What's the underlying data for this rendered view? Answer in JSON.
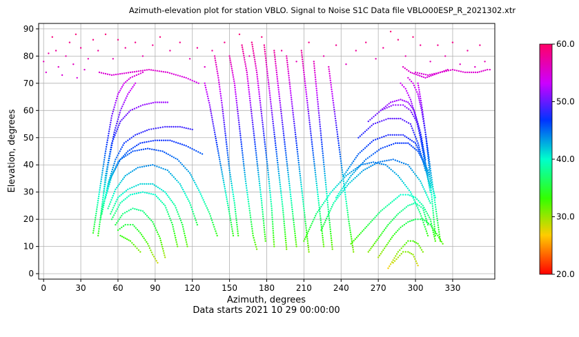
{
  "chart_data": {
    "type": "scatter",
    "title": "Azimuth-elevation plot for station VBLO.    Signal to Noise S1C    Data file VBLO00ESP_R_2021302.xtr",
    "xlabel": "Azimuth, degrees",
    "ylabel": "Elevation, degrees",
    "subtitle": "Data starts 2021 10 29 00:00:00",
    "xlim": [
      -4,
      364
    ],
    "ylim": [
      -2,
      92
    ],
    "xticks": [
      0,
      30,
      60,
      90,
      120,
      150,
      180,
      210,
      240,
      270,
      300,
      330
    ],
    "yticks": [
      0,
      10,
      20,
      30,
      40,
      50,
      60,
      70,
      80,
      90
    ],
    "grid": true,
    "colorbar": {
      "min": 20.0,
      "max": 60.0,
      "ticks": [
        "20.0",
        "30.0",
        "40.0",
        "50.0",
        "60.0"
      ],
      "tick_values": [
        20,
        30,
        40,
        50,
        60
      ],
      "colormap": "gist_rainbow"
    },
    "snr_model": "snr increases with elevation from about 25 at 0 degrees to 60 at 90 degrees",
    "tracks": [
      {
        "az": [
          40,
          45,
          50,
          55,
          60,
          65,
          70,
          75,
          80
        ],
        "el": [
          15,
          30,
          45,
          58,
          66,
          70,
          72,
          73,
          74
        ]
      },
      {
        "az": [
          44,
          48,
          52,
          57,
          62,
          68,
          74
        ],
        "el": [
          14,
          28,
          40,
          52,
          60,
          66,
          70
        ]
      },
      {
        "az": [
          46,
          50,
          55,
          62,
          70,
          80,
          90,
          100
        ],
        "el": [
          20,
          36,
          48,
          56,
          60,
          62,
          63,
          63
        ]
      },
      {
        "az": [
          47,
          52,
          58,
          65,
          74,
          85,
          98,
          110,
          120
        ],
        "el": [
          22,
          33,
          42,
          48,
          51,
          53,
          54,
          54,
          53
        ]
      },
      {
        "az": [
          48,
          53,
          60,
          68,
          78,
          90,
          102,
          115,
          128
        ],
        "el": [
          25,
          34,
          41,
          45,
          48,
          49,
          49,
          47,
          44
        ]
      },
      {
        "az": [
          50,
          55,
          62,
          72,
          84,
          96,
          108,
          118,
          126,
          134,
          140
        ],
        "el": [
          28,
          36,
          42,
          45,
          46,
          45,
          42,
          37,
          30,
          22,
          14
        ]
      },
      {
        "az": [
          52,
          58,
          66,
          76,
          88,
          100,
          110,
          118,
          124
        ],
        "el": [
          24,
          31,
          36,
          39,
          40,
          38,
          33,
          26,
          18
        ]
      },
      {
        "az": [
          54,
          60,
          68,
          78,
          88,
          98,
          106,
          112,
          116
        ],
        "el": [
          22,
          28,
          31,
          33,
          33,
          30,
          25,
          18,
          10
        ]
      },
      {
        "az": [
          55,
          62,
          70,
          80,
          90,
          98,
          104,
          108
        ],
        "el": [
          20,
          26,
          29,
          30,
          29,
          25,
          18,
          10
        ]
      },
      {
        "az": [
          58,
          64,
          72,
          80,
          88,
          94,
          98
        ],
        "el": [
          18,
          22,
          24,
          23,
          19,
          13,
          6
        ]
      },
      {
        "az": [
          60,
          66,
          72,
          78,
          84,
          88,
          92
        ],
        "el": [
          16,
          18,
          18,
          15,
          11,
          7,
          4
        ]
      },
      {
        "az": [
          62,
          66,
          70,
          74,
          78
        ],
        "el": [
          14,
          13,
          12,
          10,
          8
        ]
      },
      {
        "az": [
          45,
          55,
          70,
          85,
          100,
          115,
          125
        ],
        "el": [
          74,
          73,
          74,
          75,
          74,
          72,
          70
        ]
      },
      {
        "az": [
          130,
          134,
          138,
          142,
          146,
          150,
          153
        ],
        "el": [
          70,
          62,
          52,
          42,
          32,
          22,
          14
        ]
      },
      {
        "az": [
          138,
          141,
          144,
          147,
          150,
          154,
          157
        ],
        "el": [
          80,
          72,
          62,
          50,
          38,
          26,
          14
        ]
      },
      {
        "az": [
          150,
          154,
          157,
          160,
          163,
          166,
          169,
          172
        ],
        "el": [
          80,
          70,
          58,
          46,
          34,
          24,
          14,
          9
        ]
      },
      {
        "az": [
          160,
          164,
          167,
          170,
          173,
          176,
          179
        ],
        "el": [
          84,
          74,
          62,
          50,
          38,
          26,
          12
        ]
      },
      {
        "az": [
          168,
          172,
          175,
          178,
          181,
          184,
          186
        ],
        "el": [
          85,
          74,
          62,
          50,
          38,
          24,
          10
        ]
      },
      {
        "az": [
          178,
          181,
          184,
          187,
          190,
          193,
          196
        ],
        "el": [
          84,
          72,
          60,
          48,
          36,
          24,
          9
        ]
      },
      {
        "az": [
          186,
          189,
          192,
          195,
          198,
          201,
          204
        ],
        "el": [
          82,
          70,
          58,
          46,
          34,
          22,
          10
        ]
      },
      {
        "az": [
          196,
          199,
          202,
          205,
          208,
          211,
          214
        ],
        "el": [
          80,
          68,
          56,
          44,
          32,
          20,
          8
        ]
      },
      {
        "az": [
          208,
          211,
          214,
          217,
          220,
          223,
          226
        ],
        "el": [
          82,
          70,
          58,
          46,
          34,
          22,
          10
        ]
      },
      {
        "az": [
          218,
          221,
          224,
          227,
          230,
          233
        ],
        "el": [
          78,
          64,
          50,
          36,
          22,
          9
        ]
      },
      {
        "az": [
          230,
          234,
          238,
          242,
          246,
          250
        ],
        "el": [
          76,
          62,
          48,
          34,
          20,
          8
        ]
      },
      {
        "az": [
          210,
          220,
          232,
          244,
          256,
          266,
          276,
          286,
          296,
          304,
          310
        ],
        "el": [
          12,
          22,
          30,
          36,
          40,
          41,
          40,
          36,
          30,
          22,
          14
        ]
      },
      {
        "az": [
          224,
          234,
          246,
          258,
          270,
          282,
          294,
          304,
          312
        ],
        "el": [
          16,
          26,
          33,
          38,
          41,
          42,
          40,
          34,
          26
        ]
      },
      {
        "az": [
          236,
          248,
          260,
          272,
          284,
          294,
          302,
          310,
          316
        ],
        "el": [
          28,
          36,
          42,
          46,
          48,
          48,
          45,
          38,
          28
        ]
      },
      {
        "az": [
          242,
          254,
          266,
          278,
          290,
          300,
          306,
          312
        ],
        "el": [
          36,
          44,
          49,
          51,
          51,
          48,
          42,
          32
        ]
      },
      {
        "az": [
          254,
          266,
          278,
          288,
          296,
          302,
          308
        ],
        "el": [
          50,
          55,
          57,
          57,
          55,
          48,
          38
        ]
      },
      {
        "az": [
          262,
          272,
          282,
          290,
          296,
          302,
          306,
          310
        ],
        "el": [
          56,
          60,
          62,
          62,
          60,
          55,
          46,
          36
        ]
      },
      {
        "az": [
          272,
          280,
          288,
          294,
          299,
          304,
          308
        ],
        "el": [
          60,
          63,
          64,
          63,
          60,
          52,
          42
        ]
      },
      {
        "az": [
          248,
          256,
          264,
          272,
          280,
          288,
          294,
          300,
          306,
          312,
          316
        ],
        "el": [
          11,
          15,
          19,
          23,
          26,
          29,
          29,
          28,
          25,
          20,
          12
        ]
      },
      {
        "az": [
          262,
          270,
          278,
          286,
          294,
          300,
          306,
          310
        ],
        "el": [
          8,
          13,
          18,
          22,
          25,
          26,
          24,
          18
        ]
      },
      {
        "az": [
          270,
          276,
          282,
          288,
          294,
          300,
          306,
          312,
          318,
          322
        ],
        "el": [
          6,
          10,
          14,
          17,
          19,
          20,
          20,
          18,
          14,
          11
        ]
      },
      {
        "az": [
          278,
          282,
          286,
          290,
          294,
          298,
          302,
          306
        ],
        "el": [
          2,
          5,
          8,
          10,
          12,
          12,
          11,
          8
        ]
      },
      {
        "az": [
          282,
          286,
          290,
          294,
          298,
          302
        ],
        "el": [
          4,
          6,
          8,
          8,
          7,
          3
        ]
      },
      {
        "az": [
          316,
          314,
          312,
          310,
          308,
          305,
          302,
          298,
          294
        ],
        "el": [
          14,
          24,
          34,
          44,
          52,
          60,
          66,
          70,
          72
        ]
      },
      {
        "az": [
          320,
          317,
          314,
          311,
          308,
          305,
          302
        ],
        "el": [
          12,
          22,
          32,
          42,
          52,
          62,
          70
        ]
      },
      {
        "az": [
          312,
          308,
          304,
          300,
          296,
          292,
          288
        ],
        "el": [
          30,
          40,
          50,
          58,
          64,
          68,
          70
        ]
      },
      {
        "az": [
          300,
          310,
          320,
          330,
          340,
          350,
          358
        ],
        "el": [
          74,
          73,
          74,
          75,
          74,
          74,
          75
        ]
      },
      {
        "az": [
          290,
          296,
          302,
          308,
          314,
          320,
          326
        ],
        "el": [
          76,
          74,
          73,
          72,
          73,
          74,
          75
        ]
      }
    ],
    "scattered_points": [
      {
        "az": 2,
        "el": 74
      },
      {
        "az": 4,
        "el": 81
      },
      {
        "az": 7,
        "el": 87
      },
      {
        "az": 10,
        "el": 82
      },
      {
        "az": 12,
        "el": 76
      },
      {
        "az": 15,
        "el": 73
      },
      {
        "az": 18,
        "el": 80
      },
      {
        "az": 21,
        "el": 85
      },
      {
        "az": 24,
        "el": 77
      },
      {
        "az": 27,
        "el": 72
      },
      {
        "az": 30,
        "el": 83
      },
      {
        "az": 33,
        "el": 75
      },
      {
        "az": 36,
        "el": 79
      },
      {
        "az": 40,
        "el": 86
      },
      {
        "az": 44,
        "el": 82
      },
      {
        "az": 50,
        "el": 88
      },
      {
        "az": 56,
        "el": 79
      },
      {
        "az": 60,
        "el": 86
      },
      {
        "az": 66,
        "el": 83
      },
      {
        "az": 74,
        "el": 85
      },
      {
        "az": 80,
        "el": 80
      },
      {
        "az": 88,
        "el": 84
      },
      {
        "az": 94,
        "el": 87
      },
      {
        "az": 102,
        "el": 82
      },
      {
        "az": 110,
        "el": 85
      },
      {
        "az": 118,
        "el": 79
      },
      {
        "az": 124,
        "el": 83
      },
      {
        "az": 130,
        "el": 76
      },
      {
        "az": 136,
        "el": 82
      },
      {
        "az": 146,
        "el": 85
      },
      {
        "az": 158,
        "el": 88
      },
      {
        "az": 166,
        "el": 80
      },
      {
        "az": 176,
        "el": 87
      },
      {
        "az": 192,
        "el": 82
      },
      {
        "az": 204,
        "el": 78
      },
      {
        "az": 214,
        "el": 85
      },
      {
        "az": 226,
        "el": 80
      },
      {
        "az": 236,
        "el": 84
      },
      {
        "az": 244,
        "el": 77
      },
      {
        "az": 252,
        "el": 82
      },
      {
        "az": 260,
        "el": 85
      },
      {
        "az": 268,
        "el": 79
      },
      {
        "az": 274,
        "el": 83
      },
      {
        "az": 280,
        "el": 89
      },
      {
        "az": 286,
        "el": 86
      },
      {
        "az": 292,
        "el": 80
      },
      {
        "az": 298,
        "el": 87
      },
      {
        "az": 304,
        "el": 84
      },
      {
        "az": 312,
        "el": 78
      },
      {
        "az": 318,
        "el": 84
      },
      {
        "az": 324,
        "el": 80
      },
      {
        "az": 330,
        "el": 85
      },
      {
        "az": 336,
        "el": 77
      },
      {
        "az": 342,
        "el": 82
      },
      {
        "az": 348,
        "el": 76
      },
      {
        "az": 352,
        "el": 84
      },
      {
        "az": 356,
        "el": 78
      },
      {
        "az": 360,
        "el": 75
      },
      {
        "az": 0,
        "el": 78
      },
      {
        "az": 26,
        "el": 88
      }
    ]
  }
}
